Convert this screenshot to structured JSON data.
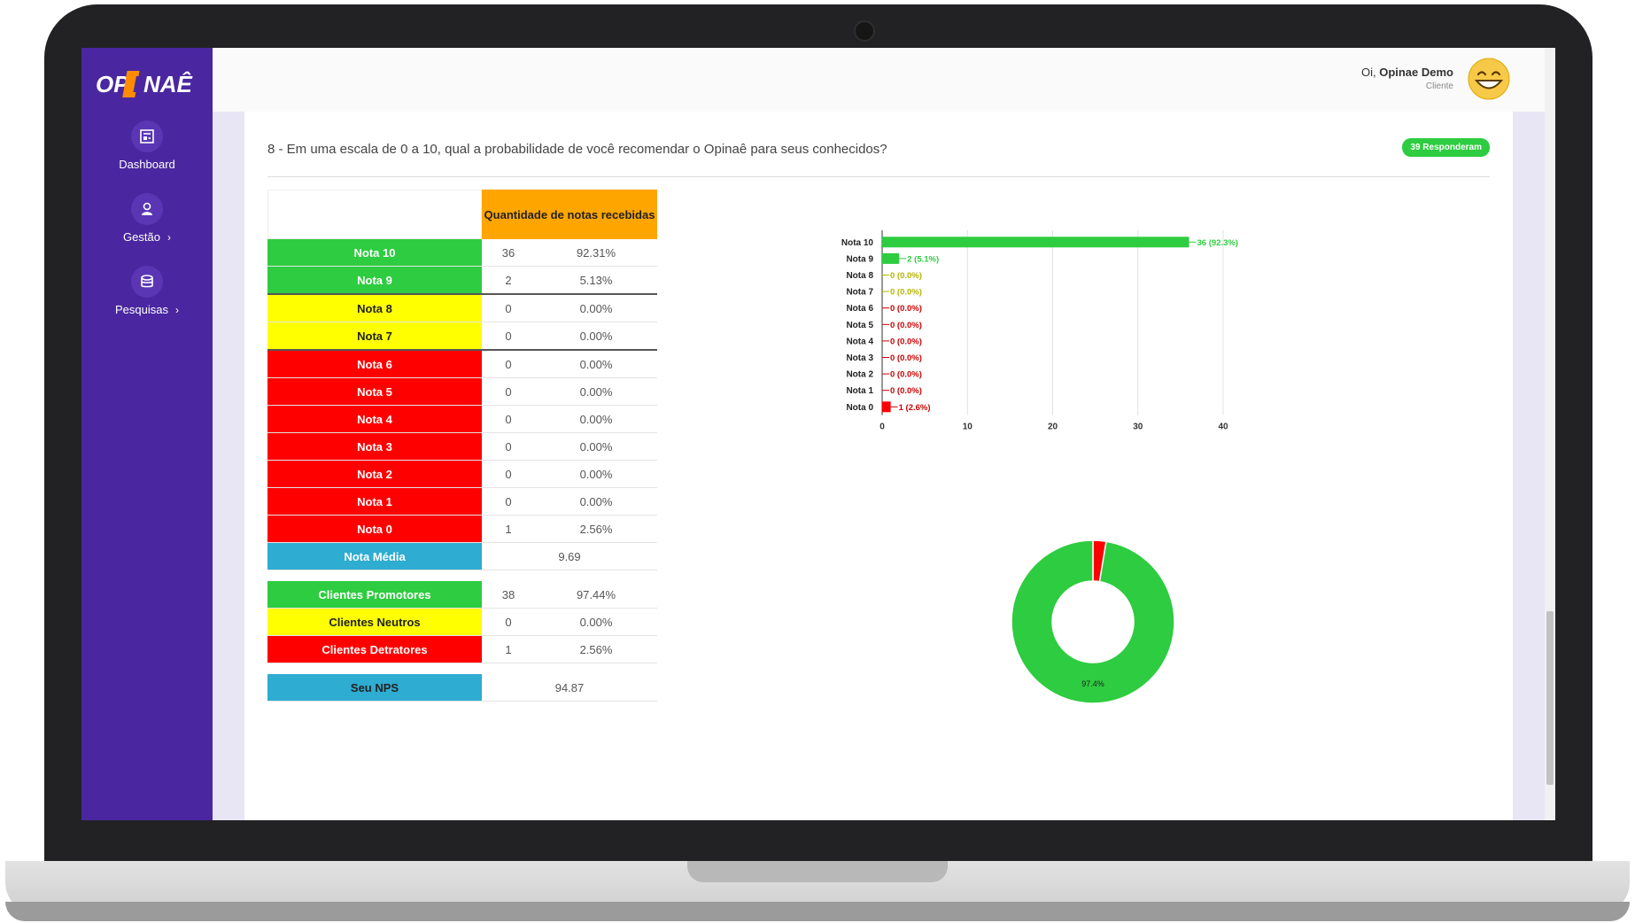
{
  "app": {
    "logo_text": "OPINAÊ",
    "brand_color": "#4a27a0"
  },
  "sidebar": {
    "items": [
      {
        "label": "Dashboard",
        "icon": "dashboard-icon",
        "has_chevron": false
      },
      {
        "label": "Gestão",
        "icon": "user-icon",
        "has_chevron": true
      },
      {
        "label": "Pesquisas",
        "icon": "database-icon",
        "has_chevron": true
      }
    ]
  },
  "header": {
    "greeting_prefix": "Oi,",
    "user_name": "Opinae Demo",
    "role": "Cliente",
    "avatar_icon": "grinning-face-icon"
  },
  "question": {
    "text": "8 - Em uma escala de 0 a 10, qual a probabilidade de você recomendar o Opinaê para seus conhecidos?",
    "badge": "39 Responderam"
  },
  "table": {
    "header": "Quantidade de notas recebidas",
    "rows": [
      {
        "label": "Nota 10",
        "count": "36",
        "pct": "92.31%",
        "color": "green"
      },
      {
        "label": "Nota 9",
        "count": "2",
        "pct": "5.13%",
        "color": "green"
      },
      {
        "label": "Nota 8",
        "count": "0",
        "pct": "0.00%",
        "color": "yellow"
      },
      {
        "label": "Nota 7",
        "count": "0",
        "pct": "0.00%",
        "color": "yellow"
      },
      {
        "label": "Nota 6",
        "count": "0",
        "pct": "0.00%",
        "color": "red"
      },
      {
        "label": "Nota 5",
        "count": "0",
        "pct": "0.00%",
        "color": "red"
      },
      {
        "label": "Nota 4",
        "count": "0",
        "pct": "0.00%",
        "color": "red"
      },
      {
        "label": "Nota 3",
        "count": "0",
        "pct": "0.00%",
        "color": "red"
      },
      {
        "label": "Nota 2",
        "count": "0",
        "pct": "0.00%",
        "color": "red"
      },
      {
        "label": "Nota 1",
        "count": "0",
        "pct": "0.00%",
        "color": "red"
      },
      {
        "label": "Nota 0",
        "count": "1",
        "pct": "2.56%",
        "color": "red"
      }
    ],
    "media_label": "Nota Média",
    "media_value": "9.69",
    "summary": [
      {
        "label": "Clientes Promotores",
        "count": "38",
        "pct": "97.44%",
        "color": "green"
      },
      {
        "label": "Clientes Neutros",
        "count": "0",
        "pct": "0.00%",
        "color": "yellow"
      },
      {
        "label": "Clientes Detratores",
        "count": "1",
        "pct": "2.56%",
        "color": "red"
      }
    ],
    "nps_label": "Seu NPS",
    "nps_value": "94.87"
  },
  "chart_data": [
    {
      "type": "bar",
      "orientation": "horizontal",
      "categories": [
        "Nota 10",
        "Nota 9",
        "Nota 8",
        "Nota 7",
        "Nota 6",
        "Nota 5",
        "Nota 4",
        "Nota 3",
        "Nota 2",
        "Nota 1",
        "Nota 0"
      ],
      "values": [
        36,
        2,
        0,
        0,
        0,
        0,
        0,
        0,
        0,
        0,
        1
      ],
      "data_labels": [
        "36 (92.3%)",
        "2 (5.1%)",
        "0 (0.0%)",
        "0 (0.0%)",
        "0 (0.0%)",
        "0 (0.0%)",
        "0 (0.0%)",
        "0 (0.0%)",
        "0 (0.0%)",
        "0 (0.0%)",
        "1 (2.6%)"
      ],
      "colors": [
        "#2ecc40",
        "#2ecc40",
        "#b5b500",
        "#b5b500",
        "#cc0000",
        "#cc0000",
        "#cc0000",
        "#cc0000",
        "#cc0000",
        "#cc0000",
        "#cc0000"
      ],
      "bar_colors": [
        "#2ecc40",
        "#2ecc40",
        "#ffff00",
        "#ffff00",
        "#ff0000",
        "#ff0000",
        "#ff0000",
        "#ff0000",
        "#ff0000",
        "#ff0000",
        "#ff0000"
      ],
      "xlim": [
        0,
        40
      ],
      "xticks": [
        "0",
        "10",
        "20",
        "30",
        "40"
      ],
      "grid": true
    },
    {
      "type": "pie",
      "style": "donut",
      "slices": [
        {
          "value": 97.4,
          "color": "#2ecc40",
          "label": "97.4%"
        },
        {
          "value": 0,
          "color": "#ffff00"
        },
        {
          "value": 2.6,
          "color": "#ff0000"
        }
      ]
    }
  ]
}
